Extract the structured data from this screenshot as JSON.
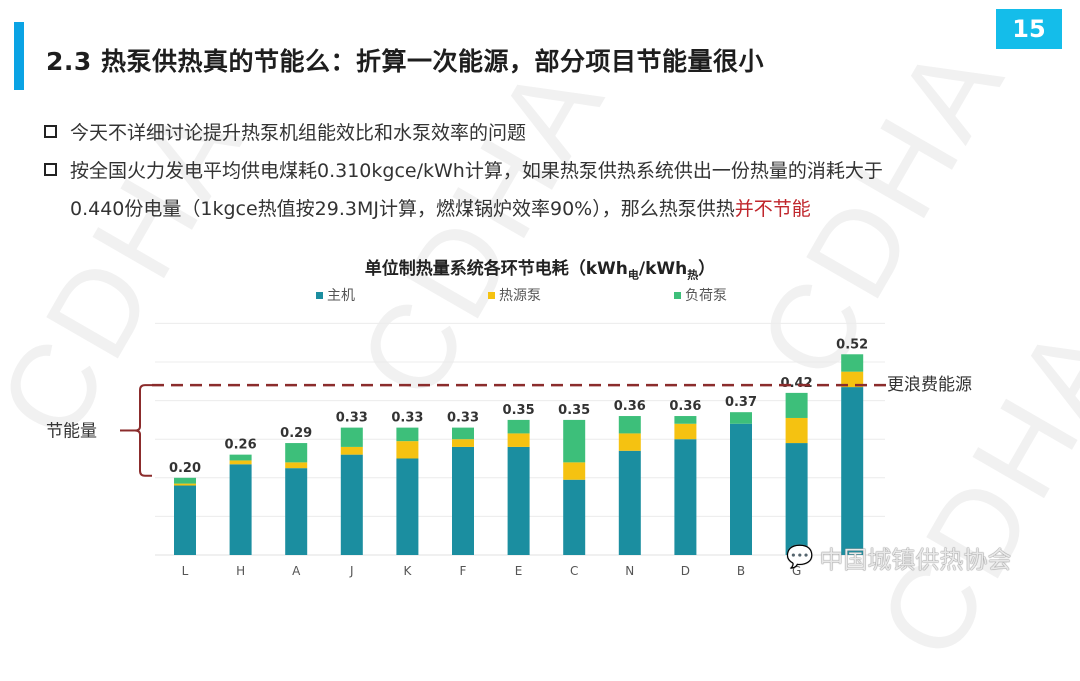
{
  "slide": {
    "title": "2.3 热泵供热真的节能么：折算一次能源，部分项目节能量很小",
    "page_number": "15",
    "accent_color": "#0aa3e4",
    "watermark": "CDHA",
    "bullets": [
      {
        "text": "今天不详细讨论提升热泵机组能效比和水泵效率的问题"
      },
      {
        "line1": "按全国火力发电平均供电煤耗0.310kgce/kWh计算，如果热泵供热系统供出一份热量的消耗大于",
        "line2_plain": "0.440份电量（1kgce热值按29.3MJ计算，燃煤锅炉效率90%），那么热泵供热",
        "line2_highlight": "并不节能"
      }
    ],
    "footer": {
      "icon": "wechat-icon",
      "text": "中国城镇供热协会"
    }
  },
  "chart_data": {
    "type": "bar",
    "stacked": true,
    "title": "单位制热量系统各环节电耗（kWh",
    "title_sub1": "电",
    "title_mid": "/kWh",
    "title_sub2": "热",
    "title_end": "）",
    "categories": [
      "L",
      "H",
      "A",
      "J",
      "K",
      "F",
      "E",
      "C",
      "N",
      "D",
      "B",
      "G",
      ""
    ],
    "series": [
      {
        "name": "主机",
        "color": "#1b8ea0",
        "values": [
          0.18,
          0.235,
          0.225,
          0.26,
          0.25,
          0.28,
          0.28,
          0.195,
          0.27,
          0.3,
          0.34,
          0.29,
          0.435
        ]
      },
      {
        "name": "热源泵",
        "color": "#f5c211",
        "values": [
          0.005,
          0.01,
          0.015,
          0.02,
          0.045,
          0.02,
          0.035,
          0.045,
          0.045,
          0.04,
          0.0,
          0.065,
          0.04
        ]
      },
      {
        "name": "负荷泵",
        "color": "#3dbf7a",
        "values": [
          0.015,
          0.015,
          0.05,
          0.05,
          0.035,
          0.03,
          0.035,
          0.11,
          0.045,
          0.02,
          0.03,
          0.065,
          0.045
        ]
      }
    ],
    "totals": [
      "0.20",
      "0.26",
      "0.29",
      "0.33",
      "0.33",
      "0.33",
      "0.35",
      "0.35",
      "0.36",
      "0.36",
      "0.37",
      "0.42",
      "0.52"
    ],
    "ylim": [
      0,
      0.6
    ],
    "grid": true,
    "gridline_step": 0.1,
    "legend_position": "top",
    "threshold": {
      "value": 0.44,
      "color": "#8b2c2c",
      "label": "更浪费能源"
    },
    "bracket": {
      "from": 0.2,
      "to": 0.44,
      "label": "节能量"
    }
  }
}
